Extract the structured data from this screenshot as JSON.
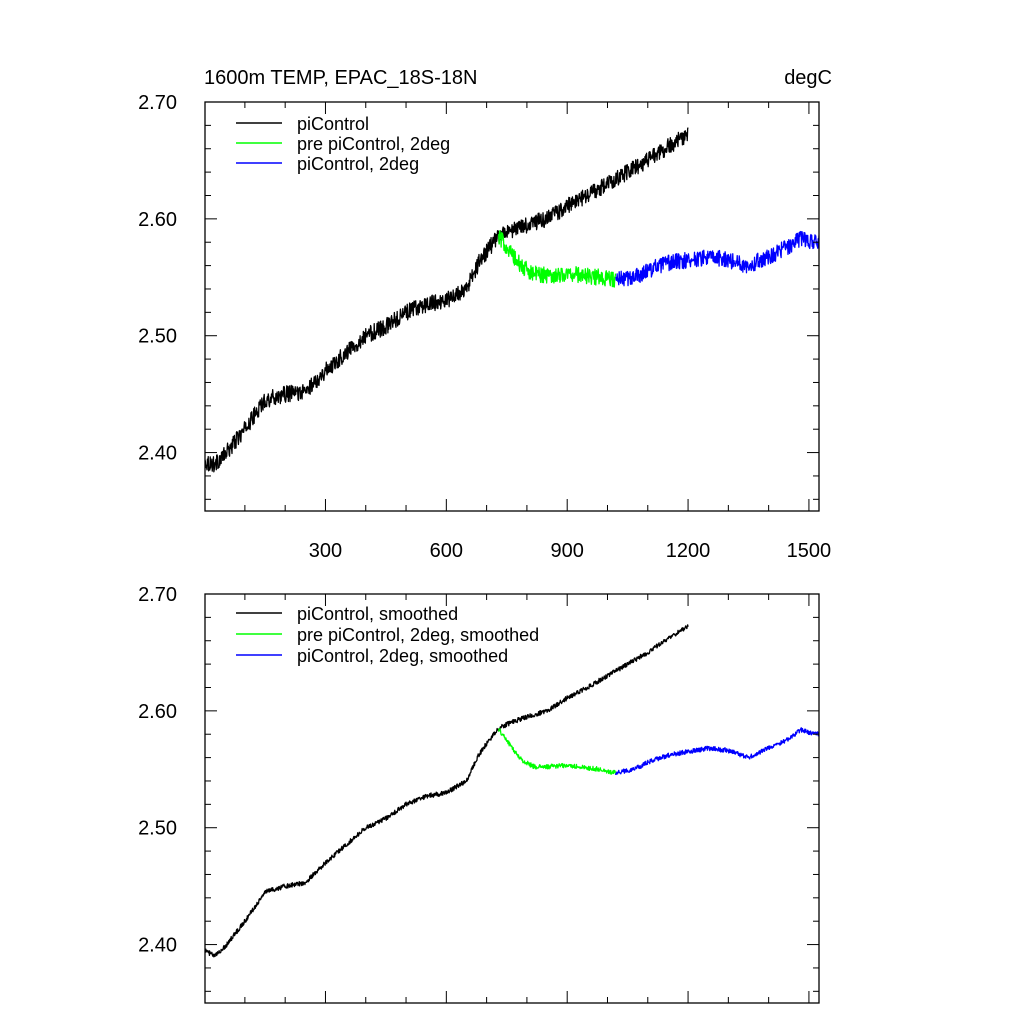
{
  "header": {
    "title": "1600m TEMP, EPAC_18S-18N",
    "units": "degC"
  },
  "colors": {
    "piControl": "#000000",
    "pre_piControl_2deg": "#00ff00",
    "piControl_2deg": "#0000ff"
  },
  "chart_data": [
    {
      "type": "line",
      "panel": "top",
      "title": "1600m TEMP, EPAC_18S-18N",
      "units": "degC",
      "xlabel": "",
      "ylabel": "",
      "xlim": [
        1,
        1525
      ],
      "ylim": [
        2.35,
        2.7
      ],
      "x_ticks": [
        300,
        600,
        900,
        1200,
        1500
      ],
      "x_tick_labels": [
        "300",
        "600",
        "900",
        "1200",
        "1500"
      ],
      "y_ticks": [
        2.4,
        2.5,
        2.6,
        2.7
      ],
      "y_tick_labels": [
        "2.40",
        "2.50",
        "2.60",
        "2.70"
      ],
      "legend_position": "top-left",
      "noise_amplitude": 0.007,
      "series": [
        {
          "name": "piControl",
          "color": "#000000",
          "x": [
            1,
            25,
            50,
            100,
            150,
            200,
            250,
            300,
            350,
            400,
            450,
            500,
            550,
            600,
            650,
            680,
            700,
            720,
            730,
            760,
            800,
            850,
            900,
            950,
            1000,
            1050,
            1100,
            1150,
            1200
          ],
          "y": [
            2.392,
            2.39,
            2.398,
            2.42,
            2.445,
            2.45,
            2.452,
            2.47,
            2.485,
            2.5,
            2.508,
            2.52,
            2.527,
            2.53,
            2.54,
            2.562,
            2.572,
            2.581,
            2.585,
            2.59,
            2.595,
            2.6,
            2.611,
            2.62,
            2.63,
            2.64,
            2.65,
            2.662,
            2.672
          ]
        },
        {
          "name": "pre piControl, 2deg",
          "color": "#00ff00",
          "x": [
            730,
            750,
            770,
            790,
            820,
            850,
            880,
            910,
            950,
            980,
            1020
          ],
          "y": [
            2.585,
            2.576,
            2.566,
            2.558,
            2.553,
            2.552,
            2.552,
            2.553,
            2.551,
            2.55,
            2.548
          ]
        },
        {
          "name": "piControl, 2deg",
          "color": "#0000ff",
          "x": [
            1020,
            1050,
            1080,
            1100,
            1150,
            1200,
            1250,
            1300,
            1350,
            1400,
            1450,
            1480,
            1500,
            1525
          ],
          "y": [
            2.548,
            2.549,
            2.552,
            2.556,
            2.562,
            2.565,
            2.567,
            2.565,
            2.56,
            2.568,
            2.576,
            2.584,
            2.581,
            2.58
          ]
        }
      ]
    },
    {
      "type": "line",
      "panel": "bottom",
      "title": "",
      "xlabel": "",
      "ylabel": "",
      "xlim": [
        1,
        1525
      ],
      "ylim": [
        2.35,
        2.7
      ],
      "x_ticks": [
        300,
        600,
        900,
        1200,
        1500
      ],
      "x_tick_labels": [],
      "y_ticks": [
        2.4,
        2.5,
        2.6,
        2.7
      ],
      "y_tick_labels": [
        "2.40",
        "2.50",
        "2.60",
        "2.70"
      ],
      "legend_position": "top-left",
      "noise_amplitude": 0.002,
      "series": [
        {
          "name": "piControl, smoothed",
          "color": "#000000",
          "x": [
            1,
            25,
            50,
            100,
            150,
            200,
            250,
            300,
            350,
            400,
            450,
            500,
            550,
            600,
            650,
            680,
            700,
            720,
            730,
            760,
            800,
            850,
            900,
            950,
            1000,
            1050,
            1100,
            1150,
            1200
          ],
          "y": [
            2.395,
            2.39,
            2.398,
            2.42,
            2.445,
            2.45,
            2.453,
            2.47,
            2.485,
            2.5,
            2.508,
            2.52,
            2.527,
            2.53,
            2.54,
            2.562,
            2.572,
            2.581,
            2.585,
            2.59,
            2.595,
            2.6,
            2.611,
            2.62,
            2.63,
            2.64,
            2.65,
            2.662,
            2.672
          ]
        },
        {
          "name": "pre piControl, 2deg, smoothed",
          "color": "#00ff00",
          "x": [
            730,
            750,
            770,
            790,
            820,
            850,
            880,
            910,
            950,
            980,
            1020
          ],
          "y": [
            2.584,
            2.575,
            2.565,
            2.557,
            2.552,
            2.552,
            2.553,
            2.553,
            2.551,
            2.55,
            2.547
          ]
        },
        {
          "name": "piControl, 2deg, smoothed",
          "color": "#0000ff",
          "x": [
            1020,
            1050,
            1080,
            1100,
            1150,
            1200,
            1250,
            1300,
            1350,
            1400,
            1450,
            1480,
            1500,
            1525
          ],
          "y": [
            2.547,
            2.549,
            2.552,
            2.556,
            2.562,
            2.565,
            2.568,
            2.566,
            2.56,
            2.568,
            2.576,
            2.584,
            2.581,
            2.58
          ]
        }
      ]
    }
  ]
}
